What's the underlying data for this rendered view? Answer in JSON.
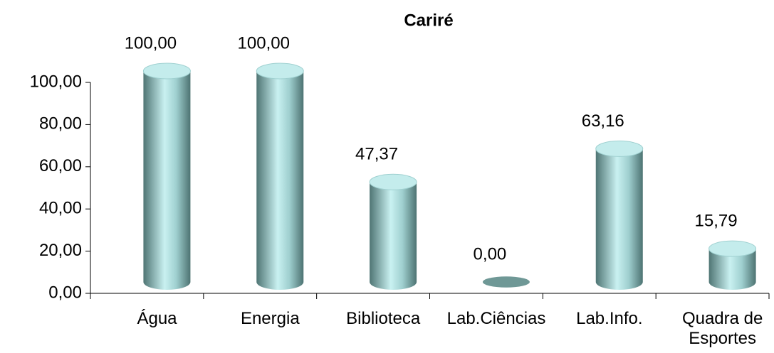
{
  "chart_data": {
    "type": "cylinder-bar",
    "title": "Cariré",
    "categories": [
      "Água",
      "Energia",
      "Biblioteca",
      "Lab.Ciências",
      "Lab.Info.",
      "Quadra de Esportes"
    ],
    "values": [
      100,
      100,
      47.37,
      0,
      63.16,
      15.79
    ],
    "value_labels": [
      "100,00",
      "100,00",
      "47,37",
      "0,00",
      "63,16",
      "15,79"
    ],
    "color": "#8fc4c4",
    "ylim": [
      0,
      100
    ],
    "yticks": [
      {
        "value": 0,
        "label": "0,00"
      },
      {
        "value": 20,
        "label": "20,00"
      },
      {
        "value": 40,
        "label": "40,00"
      },
      {
        "value": 60,
        "label": "60,00"
      },
      {
        "value": 80,
        "label": "80,00"
      },
      {
        "value": 100,
        "label": "100,00"
      }
    ]
  }
}
